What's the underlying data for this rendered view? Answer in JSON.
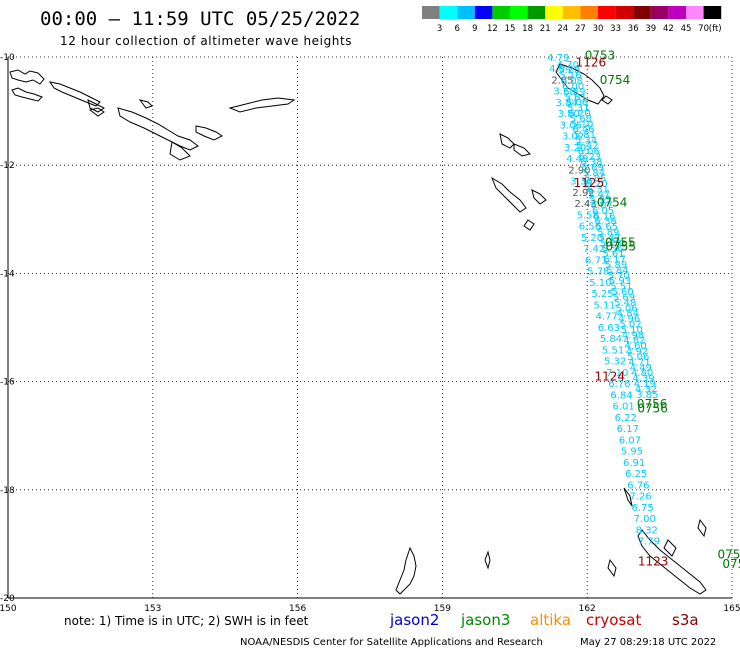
{
  "header": {
    "title": "00:00 – 11:59 UTC 05/25/2022",
    "subtitle": "12 hour collection of altimeter wave heights"
  },
  "color_scale": {
    "colors": [
      "#808080",
      "#00ffff",
      "#00bfff",
      "#0000ff",
      "#00cc00",
      "#00ff00",
      "#009900",
      "#ffff00",
      "#ffbf00",
      "#ff8000",
      "#ff0000",
      "#cc0000",
      "#800000",
      "#990066",
      "#bf00bf",
      "#ff88ff",
      "#000000"
    ],
    "labels": [
      "3",
      "6",
      "9",
      "12",
      "15",
      "18",
      "21",
      "24",
      "27",
      "30",
      "33",
      "36",
      "39",
      "42",
      "45",
      "70"
    ],
    "unit": "(ft)"
  },
  "axes": {
    "lat_labels": [
      "-10",
      "-12",
      "-14",
      "-16",
      "-18",
      "-20"
    ],
    "lon_labels": [
      "150",
      "153",
      "156",
      "159",
      "162",
      "165"
    ]
  },
  "note": "note:  1) Time is in UTC;  2) SWH is in feet",
  "satellites": [
    {
      "name": "jason2",
      "color": "#0000cc"
    },
    {
      "name": "jason3",
      "color": "#008800"
    },
    {
      "name": "altika",
      "color": "#ff8c00"
    },
    {
      "name": "cryosat",
      "color": "#cc0000"
    },
    {
      "name": "s3a",
      "color": "#880000"
    }
  ],
  "footer": {
    "credit": "NOAA/NESDIS Center for Satellite Applications and Research",
    "timestamp": "May 27 08:29:18 UTC 2022"
  },
  "chart_data": {
    "type": "scatter",
    "xlim": [
      150,
      165
    ],
    "ylim": [
      -20,
      -10
    ],
    "grid": true,
    "track_a": {
      "lon_start": 161.4,
      "lat_start": -10.07,
      "lat_step": -0.208,
      "lon_per_lat": -0.21,
      "values": [
        "4.79",
        "4.84",
        "2.85",
        "3.68",
        "3.84",
        "3.80",
        "3.06",
        "3.02",
        "3.20",
        "4.49",
        "2.90",
        "3.36",
        "2.92",
        "2.43",
        "5.58",
        "6.56",
        "5.20",
        "7.42",
        "6.71",
        "5.78",
        "5.10",
        "5.25",
        "5.11",
        "4.77",
        "6.63",
        "5.84",
        "5.51",
        "5.32",
        "7.10",
        "6.76",
        "6.84",
        "6.01",
        "6.22",
        "6.17",
        "6.07",
        "5.95",
        "6.91",
        "6.25",
        "6.76",
        "7.26",
        "6.75",
        "7.00",
        "8.32",
        "7.79"
      ],
      "colors": [
        "#00ccff",
        "#00ccff",
        "#555555",
        "#00ccff",
        "#00ccff",
        "#00ccff",
        "#00ccff",
        "#00ccff",
        "#00ccff",
        "#00ccff",
        "#555555",
        "#00ccff",
        "#555555",
        "#555555",
        "#00ccff",
        "#00ccff",
        "#00ccff",
        "#00ccff",
        "#00ccff",
        "#00ccff",
        "#00ccff",
        "#00ccff",
        "#00ccff",
        "#00ccff",
        "#00ccff",
        "#00ccff",
        "#00ccff",
        "#00ccff",
        "#00ccff",
        "#00ccff",
        "#00ccff",
        "#00ccff",
        "#00ccff",
        "#00ccff",
        "#00ccff",
        "#00ccff",
        "#00ccff",
        "#00ccff",
        "#00ccff",
        "#00ccff",
        "#00ccff",
        "#00ccff",
        "#00ccff",
        "#00ccff"
      ]
    },
    "track_b": {
      "lon_start": 161.6,
      "lat_start": -10.2,
      "lat_step": -0.1,
      "lon_per_lat": -0.27,
      "values": [
        "4.70",
        "5.28",
        "5.16",
        "6.08",
        "6.00",
        "5.59",
        "5.61",
        "5.06",
        "5.31",
        "6.20",
        "5.68",
        "5.10",
        "6.46",
        "5.81",
        "5.34",
        "5.42",
        "6.06",
        "6.23",
        "6.38",
        "5.69",
        "5.84",
        "5.85",
        "6.20",
        "6.31",
        "5.47",
        "5.95",
        "6.07",
        "6.05",
        "6.16",
        "6.36",
        "5.65",
        "5.89",
        "5.47",
        "5.73",
        "5.56",
        "5.61",
        "6.17",
        "5.89",
        "5.84",
        "5.70",
        "5.93",
        "5.51",
        "5.60",
        "5.69",
        "5.48",
        "5.06",
        "4.84",
        "4.96",
        "5.02",
        "5.10",
        "4.98",
        "4.82",
        "4.60",
        "4.92",
        "5.06",
        "4.71",
        "4.49",
        "4.80",
        "4.39",
        "4.19",
        "4.32",
        "3.85"
      ],
      "colors": [
        "#00ccff",
        "#00ccff",
        "#00ccff",
        "#00ccff",
        "#00ccff",
        "#00ccff",
        "#00ccff",
        "#00ccff",
        "#00ccff",
        "#00ccff",
        "#00ccff",
        "#00ccff",
        "#00ccff",
        "#00ccff",
        "#00ccff",
        "#00ccff",
        "#00ccff",
        "#00ccff",
        "#00ccff",
        "#00ccff",
        "#00ccff",
        "#00ccff",
        "#00ccff",
        "#00ccff",
        "#00ccff",
        "#00ccff",
        "#00ccff",
        "#00ccff",
        "#00ccff",
        "#00ccff",
        "#00ccff",
        "#00ccff",
        "#00ccff",
        "#00ccff",
        "#00ccff",
        "#00ccff",
        "#00ccff",
        "#00ccff",
        "#00ccff",
        "#00ccff",
        "#00ccff",
        "#00ccff",
        "#00ccff",
        "#00ccff",
        "#00ccff",
        "#00ccff",
        "#00ccff",
        "#00ccff",
        "#00ccff",
        "#00ccff",
        "#00ccff",
        "#00ccff",
        "#00ccff",
        "#00ccff",
        "#00ccff",
        "#00ccff",
        "#00ccff",
        "#00ccff",
        "#00ccff",
        "#00ccff",
        "#00ccff",
        "#00ccff"
      ]
    },
    "pass_labels": [
      {
        "text": "0753",
        "lon": 161.95,
        "lat": -10.05,
        "color": "#007700"
      },
      {
        "text": "1126",
        "lon": 161.76,
        "lat": -10.18,
        "color": "#990000"
      },
      {
        "text": "0754",
        "lon": 162.26,
        "lat": -10.5,
        "color": "#007700"
      },
      {
        "text": "1125",
        "lon": 161.72,
        "lat": -12.4,
        "color": "#990000"
      },
      {
        "text": "0754",
        "lon": 162.2,
        "lat": -12.76,
        "color": "#007700"
      },
      {
        "text": "0755",
        "lon": 162.37,
        "lat": -13.5,
        "color": "#007700"
      },
      {
        "text": "0755",
        "lon": 162.38,
        "lat": -13.58,
        "color": "#007700"
      },
      {
        "text": "1124",
        "lon": 162.15,
        "lat": -15.98,
        "color": "#990000"
      },
      {
        "text": "0756",
        "lon": 163.03,
        "lat": -16.49,
        "color": "#007700"
      },
      {
        "text": "0756",
        "lon": 163.04,
        "lat": -16.57,
        "color": "#007700"
      },
      {
        "text": "1123",
        "lon": 163.05,
        "lat": -19.4,
        "color": "#990000"
      },
      {
        "text": "075",
        "lon": 164.7,
        "lat": -19.27,
        "color": "#007700"
      },
      {
        "text": "075",
        "lon": 164.8,
        "lat": -19.45,
        "color": "#007700"
      }
    ]
  }
}
